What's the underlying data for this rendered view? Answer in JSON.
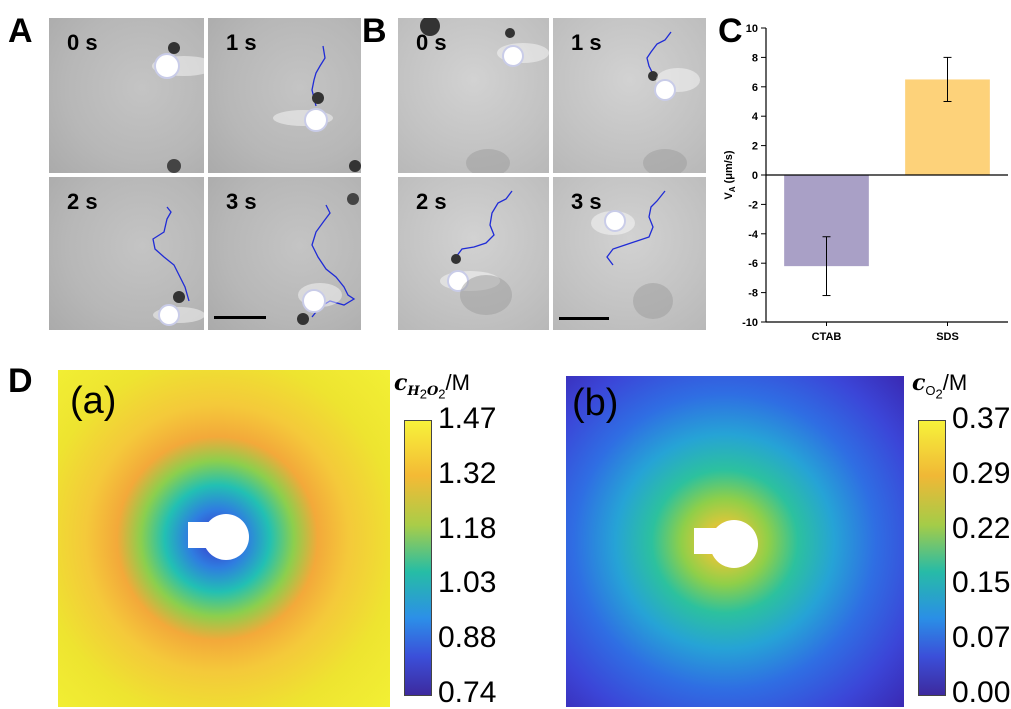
{
  "panels": {
    "a": {
      "letter": "A",
      "frames": [
        "0 s",
        "1 s",
        "2 s",
        "3 s"
      ]
    },
    "b": {
      "letter": "B",
      "frames": [
        "0 s",
        "1 s",
        "2 s",
        "3 s"
      ]
    },
    "c": {
      "letter": "C"
    },
    "d": {
      "letter": "D"
    }
  },
  "chart_data": {
    "type": "bar",
    "categories": [
      "CTAB",
      "SDS"
    ],
    "values": [
      -6.2,
      6.5
    ],
    "errors": [
      2.0,
      1.5
    ],
    "ylabel": "V_A (μm/s)",
    "ylabel_main": "V",
    "ylabel_sub": "A",
    "ylabel_rest": " (μm/s)",
    "ylim": [
      -10,
      10
    ],
    "yticks": [
      -10,
      -8,
      -6,
      -4,
      -2,
      0,
      2,
      4,
      6,
      8,
      10
    ],
    "colors": [
      "#a9a0c6",
      "#fdd27a"
    ]
  },
  "maps": {
    "a": {
      "tag": "(a)",
      "cb_prefix": "c",
      "cb_sub": "H",
      "cb_sub2": "2",
      "cb_sub3": "O",
      "cb_sub4": "2",
      "cb_unit": "/M",
      "ticks": [
        "1.47",
        "1.32",
        "1.18",
        "1.03",
        "0.88",
        "0.74"
      ]
    },
    "b": {
      "tag": "(b)",
      "cb_prefix": "c",
      "cb_sub": "O",
      "cb_sub2": "2",
      "cb_unit": "/M",
      "ticks": [
        "0.37",
        "0.29",
        "0.22",
        "0.15",
        "0.07",
        "0.00"
      ]
    }
  },
  "colors": {
    "trajectory": "#1f2bd6",
    "scalebar": "#000000"
  }
}
